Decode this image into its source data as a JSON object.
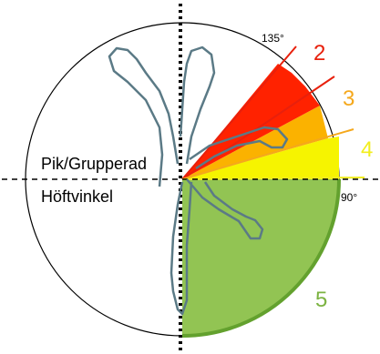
{
  "labels": {
    "position_upper": "Pik/Grupperad",
    "position_lower": "Höftvinkel",
    "angle_90": "90°",
    "angle_135": "135°"
  },
  "zones": [
    {
      "number": "2",
      "color": "#e8200c"
    },
    {
      "number": "3",
      "color": "#f5a81c"
    },
    {
      "number": "4",
      "color": "#f2ee1e"
    },
    {
      "number": "5",
      "color": "#7cb342"
    }
  ],
  "colors": {
    "circle": "#000000",
    "figure_outline": "#5b7a86",
    "axis": "#000000",
    "zone_green_fill": "#92c453",
    "zone_green_rim": "#63a12e",
    "zone_yellow_fill": "#f6f400",
    "zone_orange_fill": "#fbb200",
    "zone_red_fill": "#ff2200"
  }
}
